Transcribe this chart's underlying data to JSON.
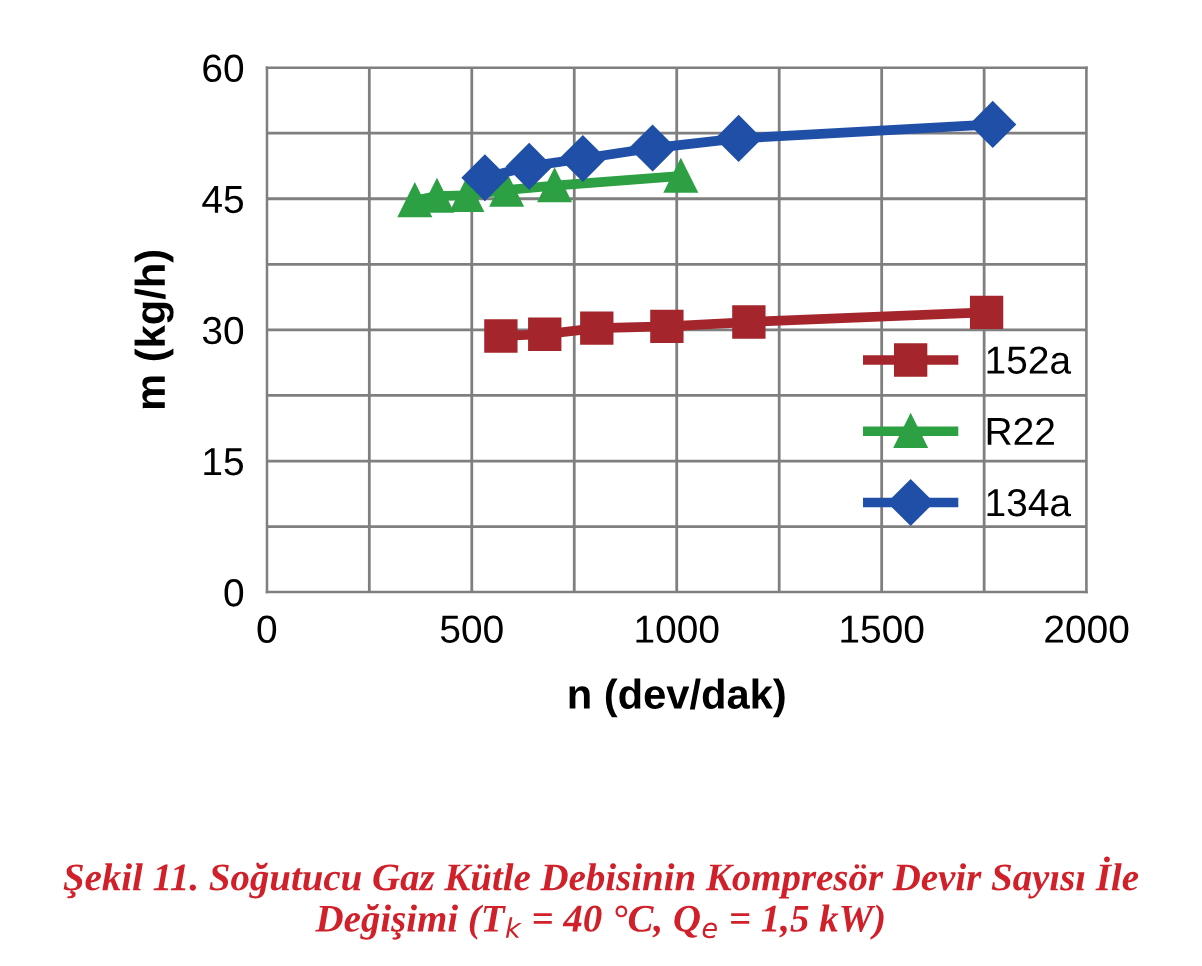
{
  "chart_data": {
    "type": "line",
    "xlabel": "n (dev/dak)",
    "ylabel": "m (kg/h)",
    "annotations": [
      "Şekil 11. Soğutucu Gaz Kütle Debisinin Kompresör Devir Sayısı İle Değişimi (T$_{k}$ = 40 °C, Q$_{e}$ = 1,5 kW)"
    ],
    "series": [
      {
        "name": "152a",
        "color": "#a4262c",
        "marker": "square",
        "x": [
          571,
          678,
          805,
          976,
          1176,
          1756
        ],
        "values": [
          29.3,
          29.5,
          30.2,
          30.4,
          30.9,
          32.0
        ]
      },
      {
        "name": "R22",
        "color": "#2ca043",
        "marker": "triangle",
        "x": [
          361,
          415,
          488,
          585,
          702,
          1010
        ],
        "values": [
          44.8,
          45.3,
          45.4,
          46.0,
          46.5,
          47.6
        ]
      },
      {
        "name": "134a",
        "color": "#1f4fa6",
        "marker": "diamond",
        "x": [
          532,
          640,
          771,
          941,
          1151,
          1771
        ],
        "values": [
          47.4,
          48.7,
          49.6,
          50.8,
          51.9,
          53.5
        ]
      }
    ],
    "xlim": [
      0,
      2000
    ],
    "xticks": [
      0,
      {
        "value": 250,
        "label": null
      },
      500,
      {
        "value": 750,
        "label": null
      },
      1000,
      {
        "value": 1250,
        "label": null
      },
      1500,
      {
        "value": 1750,
        "label": null
      },
      2000
    ],
    "ylim": [
      0,
      60
    ],
    "yticks": [
      0,
      {
        "value": 7.5,
        "label": null
      },
      15,
      {
        "value": 22.5,
        "label": null
      },
      30,
      {
        "value": 37.5,
        "label": null
      },
      45,
      {
        "value": 52.5,
        "label": null
      },
      60
    ],
    "grid": true,
    "legend": "right",
    "line_style": "solid"
  }
}
